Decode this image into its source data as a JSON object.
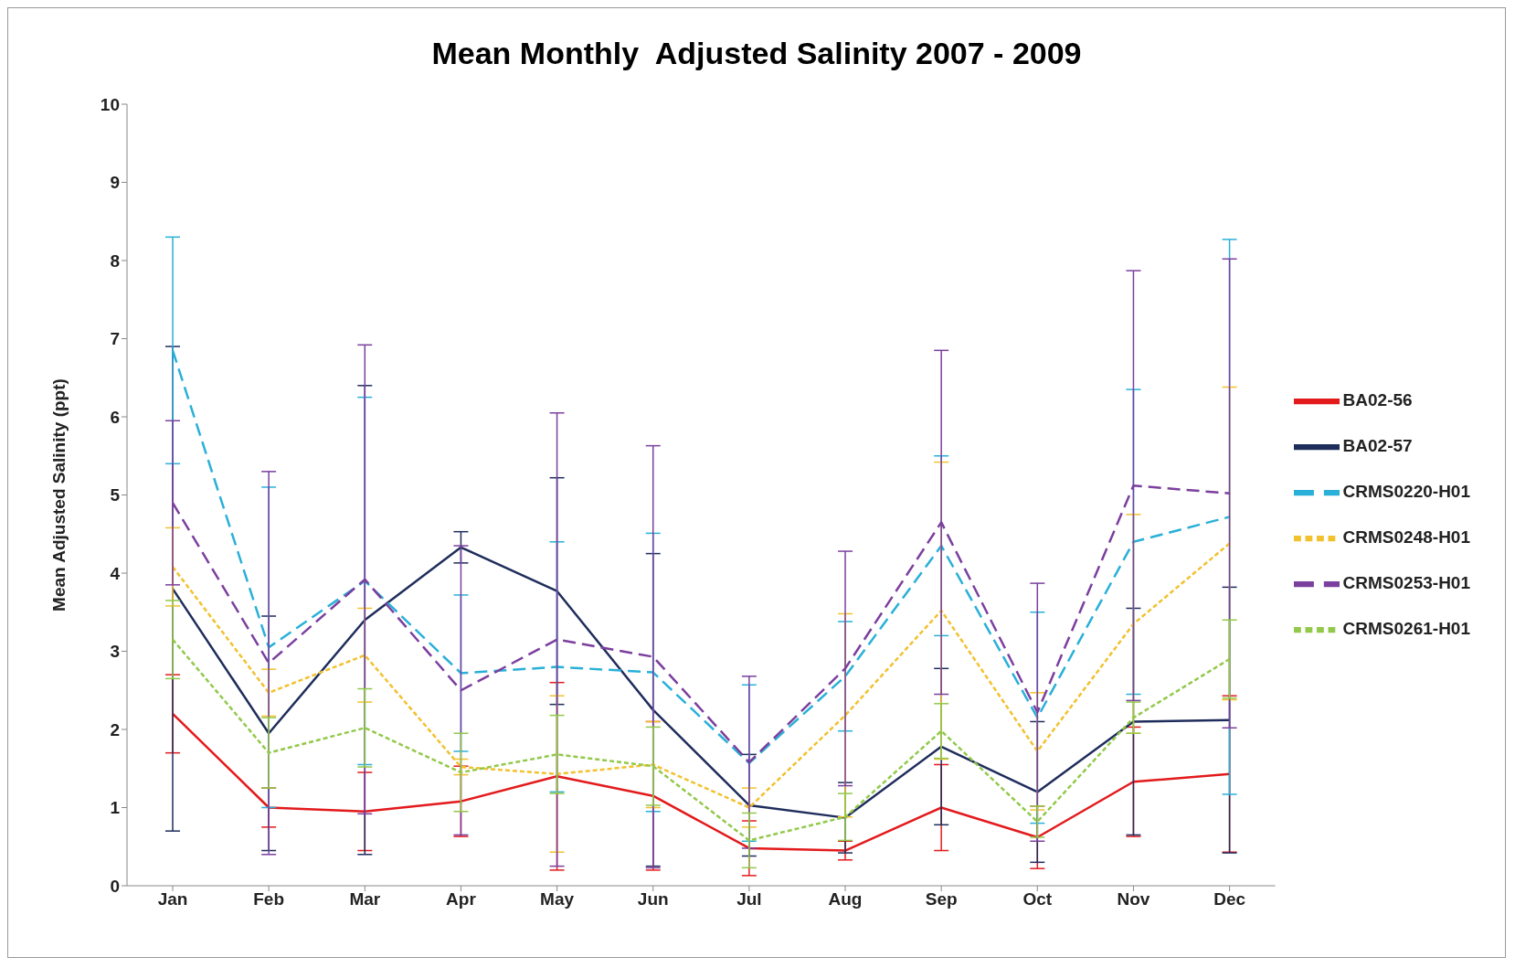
{
  "chart_data": {
    "type": "line",
    "title": "Mean Monthly  Adjusted Salinity 2007 - 2009",
    "ylabel": "Mean Adjusted Salinity (ppt)",
    "categories": [
      "Jan",
      "Feb",
      "Mar",
      "Apr",
      "May",
      "Jun",
      "Jul",
      "Aug",
      "Sep",
      "Oct",
      "Nov",
      "Dec"
    ],
    "ylim": [
      0,
      10
    ],
    "yticks": [
      0,
      1,
      2,
      3,
      4,
      5,
      6,
      7,
      8,
      9,
      10
    ],
    "legend": "right",
    "marker": "none",
    "series": [
      {
        "name": "BA02-56",
        "color": "#e31a1c",
        "line_style": "solid",
        "values": [
          2.2,
          1.0,
          0.95,
          1.08,
          1.4,
          1.15,
          0.48,
          0.45,
          1.0,
          0.62,
          1.33,
          1.43
        ],
        "errors": [
          0.5,
          0.25,
          0.5,
          0.45,
          1.2,
          0.95,
          0.35,
          0.12,
          0.55,
          0.4,
          0.7,
          1.0
        ]
      },
      {
        "name": "BA02-57",
        "color": "#1f2d5c",
        "line_style": "solid",
        "values": [
          3.8,
          1.95,
          3.4,
          4.33,
          3.77,
          2.25,
          1.03,
          0.87,
          1.78,
          1.2,
          2.1,
          2.12
        ],
        "errors": [
          3.1,
          1.5,
          3.0,
          0.2,
          1.45,
          2.0,
          0.65,
          0.45,
          1.0,
          0.9,
          1.45,
          1.7
        ]
      },
      {
        "name": "CRMS0220-H01",
        "color": "#29b0d8",
        "line_style": "dashed",
        "values": [
          6.85,
          3.05,
          3.9,
          2.72,
          2.8,
          2.73,
          1.57,
          2.68,
          4.35,
          2.15,
          4.4,
          4.72
        ],
        "errors": [
          1.45,
          2.05,
          2.35,
          1.0,
          1.6,
          1.78,
          1.0,
          0.7,
          1.15,
          1.35,
          1.95,
          3.55
        ]
      },
      {
        "name": "CRMS0248-H01",
        "color": "#f2c12e",
        "line_style": "dotted",
        "values": [
          4.08,
          2.47,
          2.95,
          1.52,
          1.43,
          1.55,
          1.0,
          2.18,
          3.52,
          1.72,
          3.35,
          4.38
        ],
        "errors": [
          0.5,
          0.3,
          0.6,
          0.1,
          1.0,
          0.55,
          0.25,
          1.3,
          1.9,
          0.75,
          1.4,
          2.0
        ]
      },
      {
        "name": "CRMS0253-H01",
        "color": "#7b3f9e",
        "line_style": "dashed",
        "values": [
          4.9,
          2.85,
          3.92,
          2.5,
          3.15,
          2.93,
          1.58,
          2.78,
          4.65,
          2.22,
          5.12,
          5.02
        ],
        "errors": [
          1.05,
          2.45,
          3.0,
          1.85,
          2.9,
          2.7,
          1.1,
          1.5,
          2.2,
          1.65,
          2.75,
          3.0
        ]
      },
      {
        "name": "CRMS0261-H01",
        "color": "#92c94a",
        "line_style": "dotted",
        "values": [
          3.15,
          1.7,
          2.02,
          1.45,
          1.68,
          1.53,
          0.58,
          0.88,
          1.98,
          0.82,
          2.15,
          2.9
        ],
        "errors": [
          0.5,
          0.45,
          0.5,
          0.5,
          0.5,
          0.5,
          0.35,
          0.3,
          0.35,
          0.2,
          0.2,
          0.5
        ]
      }
    ]
  }
}
